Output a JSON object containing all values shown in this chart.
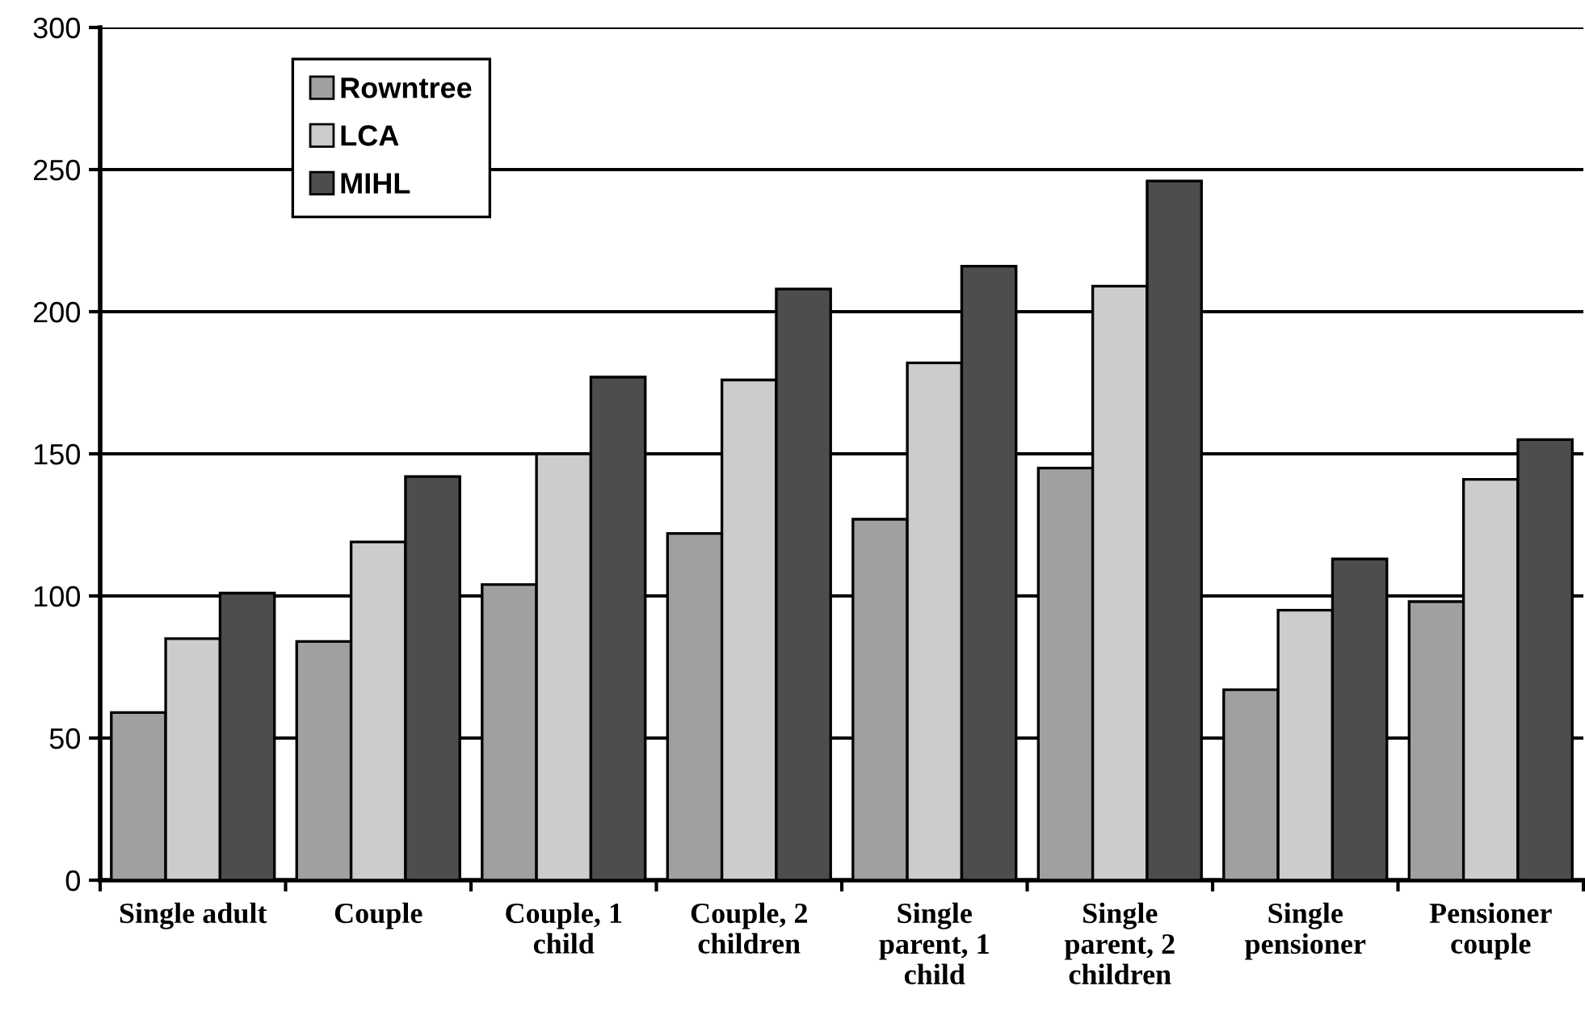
{
  "chart_data": {
    "type": "bar",
    "categories": [
      "Single adult",
      "Couple",
      "Couple, 1\nchild",
      "Couple, 2\nchildren",
      "Single\nparent, 1\nchild",
      "Single\nparent, 2\nchildren",
      "Single\npensioner",
      "Pensioner\ncouple"
    ],
    "series": [
      {
        "name": "Rowntree",
        "color": "#a0a0a0",
        "values": [
          59,
          84,
          104,
          122,
          127,
          145,
          67,
          98
        ]
      },
      {
        "name": "LCA",
        "color": "#cccccc",
        "values": [
          85,
          119,
          150,
          176,
          182,
          209,
          95,
          141
        ]
      },
      {
        "name": "MIHL",
        "color": "#4d4d4d",
        "values": [
          101,
          142,
          177,
          208,
          216,
          246,
          113,
          155
        ]
      }
    ],
    "ylim": [
      0,
      300
    ],
    "yticks": [
      0,
      50,
      100,
      150,
      200,
      250,
      300
    ],
    "grid": "y",
    "legend": "top left"
  }
}
